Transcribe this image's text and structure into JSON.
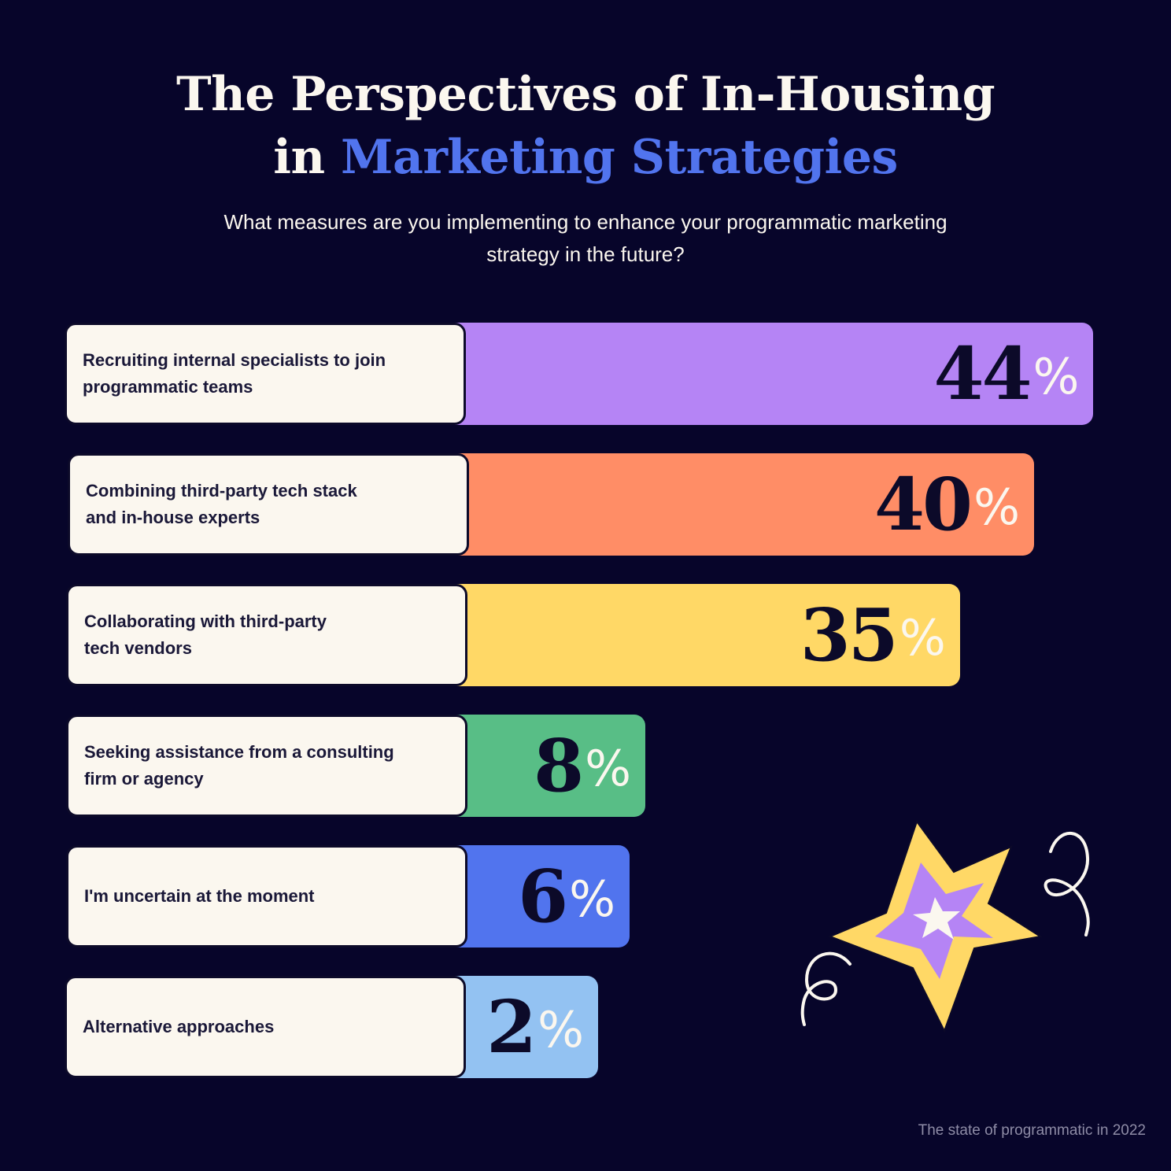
{
  "title": {
    "line1": "The Perspectives of In-Housing",
    "line2_prefix": "in ",
    "line2_accent": "Marketing Strategies"
  },
  "subtitle": "What measures are you implementing to enhance your programmatic marketing strategy in the future?",
  "footnote": "The state of programmatic in 2022",
  "colors": {
    "background": "#07052a",
    "accent_title": "#5174ee",
    "label_bg": "#fbf7ef",
    "value_text": "#0c0a29",
    "percent_sign": "#fbf7ef"
  },
  "chart_data": {
    "type": "bar",
    "orientation": "horizontal",
    "unit": "%",
    "categories": [
      "Recruiting internal specialists to join\nprogrammatic teams",
      "Combining third-party tech stack\nand in-house experts",
      "Collaborating with third-party\ntech vendors",
      "Seeking assistance from a consulting\nfirm or agency",
      "I'm uncertain at the moment",
      "Alternative approaches"
    ],
    "values": [
      44,
      40,
      35,
      8,
      6,
      2
    ],
    "bar_colors": [
      "#b584f5",
      "#ff8d66",
      "#ffd866",
      "#58be86",
      "#5174ee",
      "#93c2f2"
    ],
    "labels": [
      {
        "num": "44",
        "pct": "%"
      },
      {
        "num": "40",
        "pct": "%"
      },
      {
        "num": "35",
        "pct": "%"
      },
      {
        "num": "8",
        "pct": "%"
      },
      {
        "num": "6",
        "pct": "%"
      },
      {
        "num": "2",
        "pct": "%"
      }
    ],
    "grid": false,
    "legend": "none"
  },
  "decoration": {
    "icon": "star-burst-icon",
    "colors": {
      "outer": "#ffd866",
      "middle": "#b584f5",
      "inner": "#fbf7ef",
      "swirl": "#fbf7ef"
    }
  }
}
